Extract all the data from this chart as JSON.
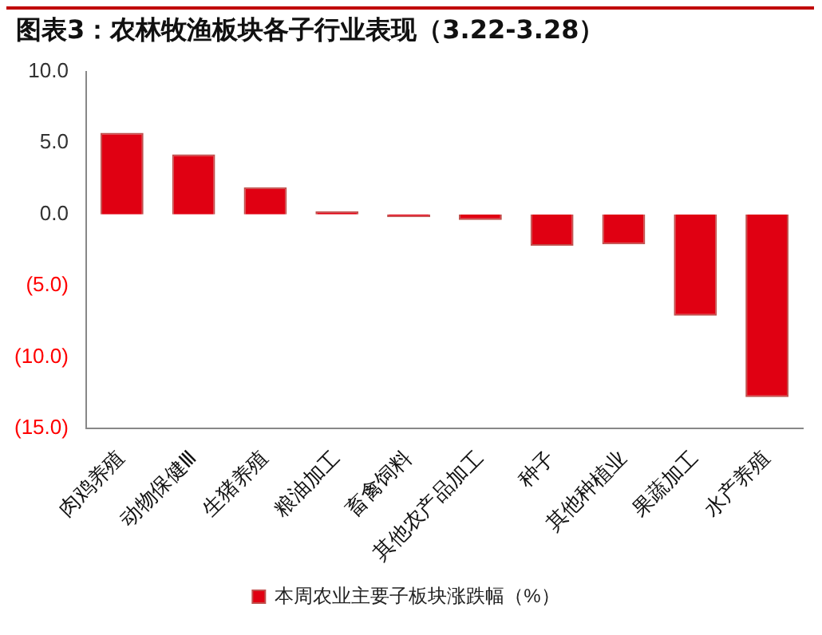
{
  "chart_data": {
    "type": "bar",
    "title": "图表3：农林牧渔板块各子行业表现（3.22-3.28）",
    "categories": [
      "肉鸡养殖",
      "动物保健Ⅲ",
      "生猪养殖",
      "粮油加工",
      "畜禽饲料",
      "其他农产品加工",
      "种子",
      "其他种植业",
      "果蔬加工",
      "水产养殖"
    ],
    "series": [
      {
        "name": "本周农业主要子板块涨跌幅（%）",
        "color": "#e00012",
        "values": [
          5.7,
          4.2,
          1.9,
          0.2,
          -0.2,
          -0.4,
          -2.2,
          -2.1,
          -7.1,
          -12.8
        ]
      }
    ],
    "ylim": [
      -15,
      10
    ],
    "yticks": [
      {
        "value": 10,
        "label": "10.0"
      },
      {
        "value": 5,
        "label": "5.0"
      },
      {
        "value": 0,
        "label": "0.0"
      },
      {
        "value": -5,
        "label": "(5.0)"
      },
      {
        "value": -10,
        "label": "(10.0)"
      },
      {
        "value": -15,
        "label": "(15.0)"
      }
    ],
    "grid": false,
    "legend": "bottom"
  }
}
